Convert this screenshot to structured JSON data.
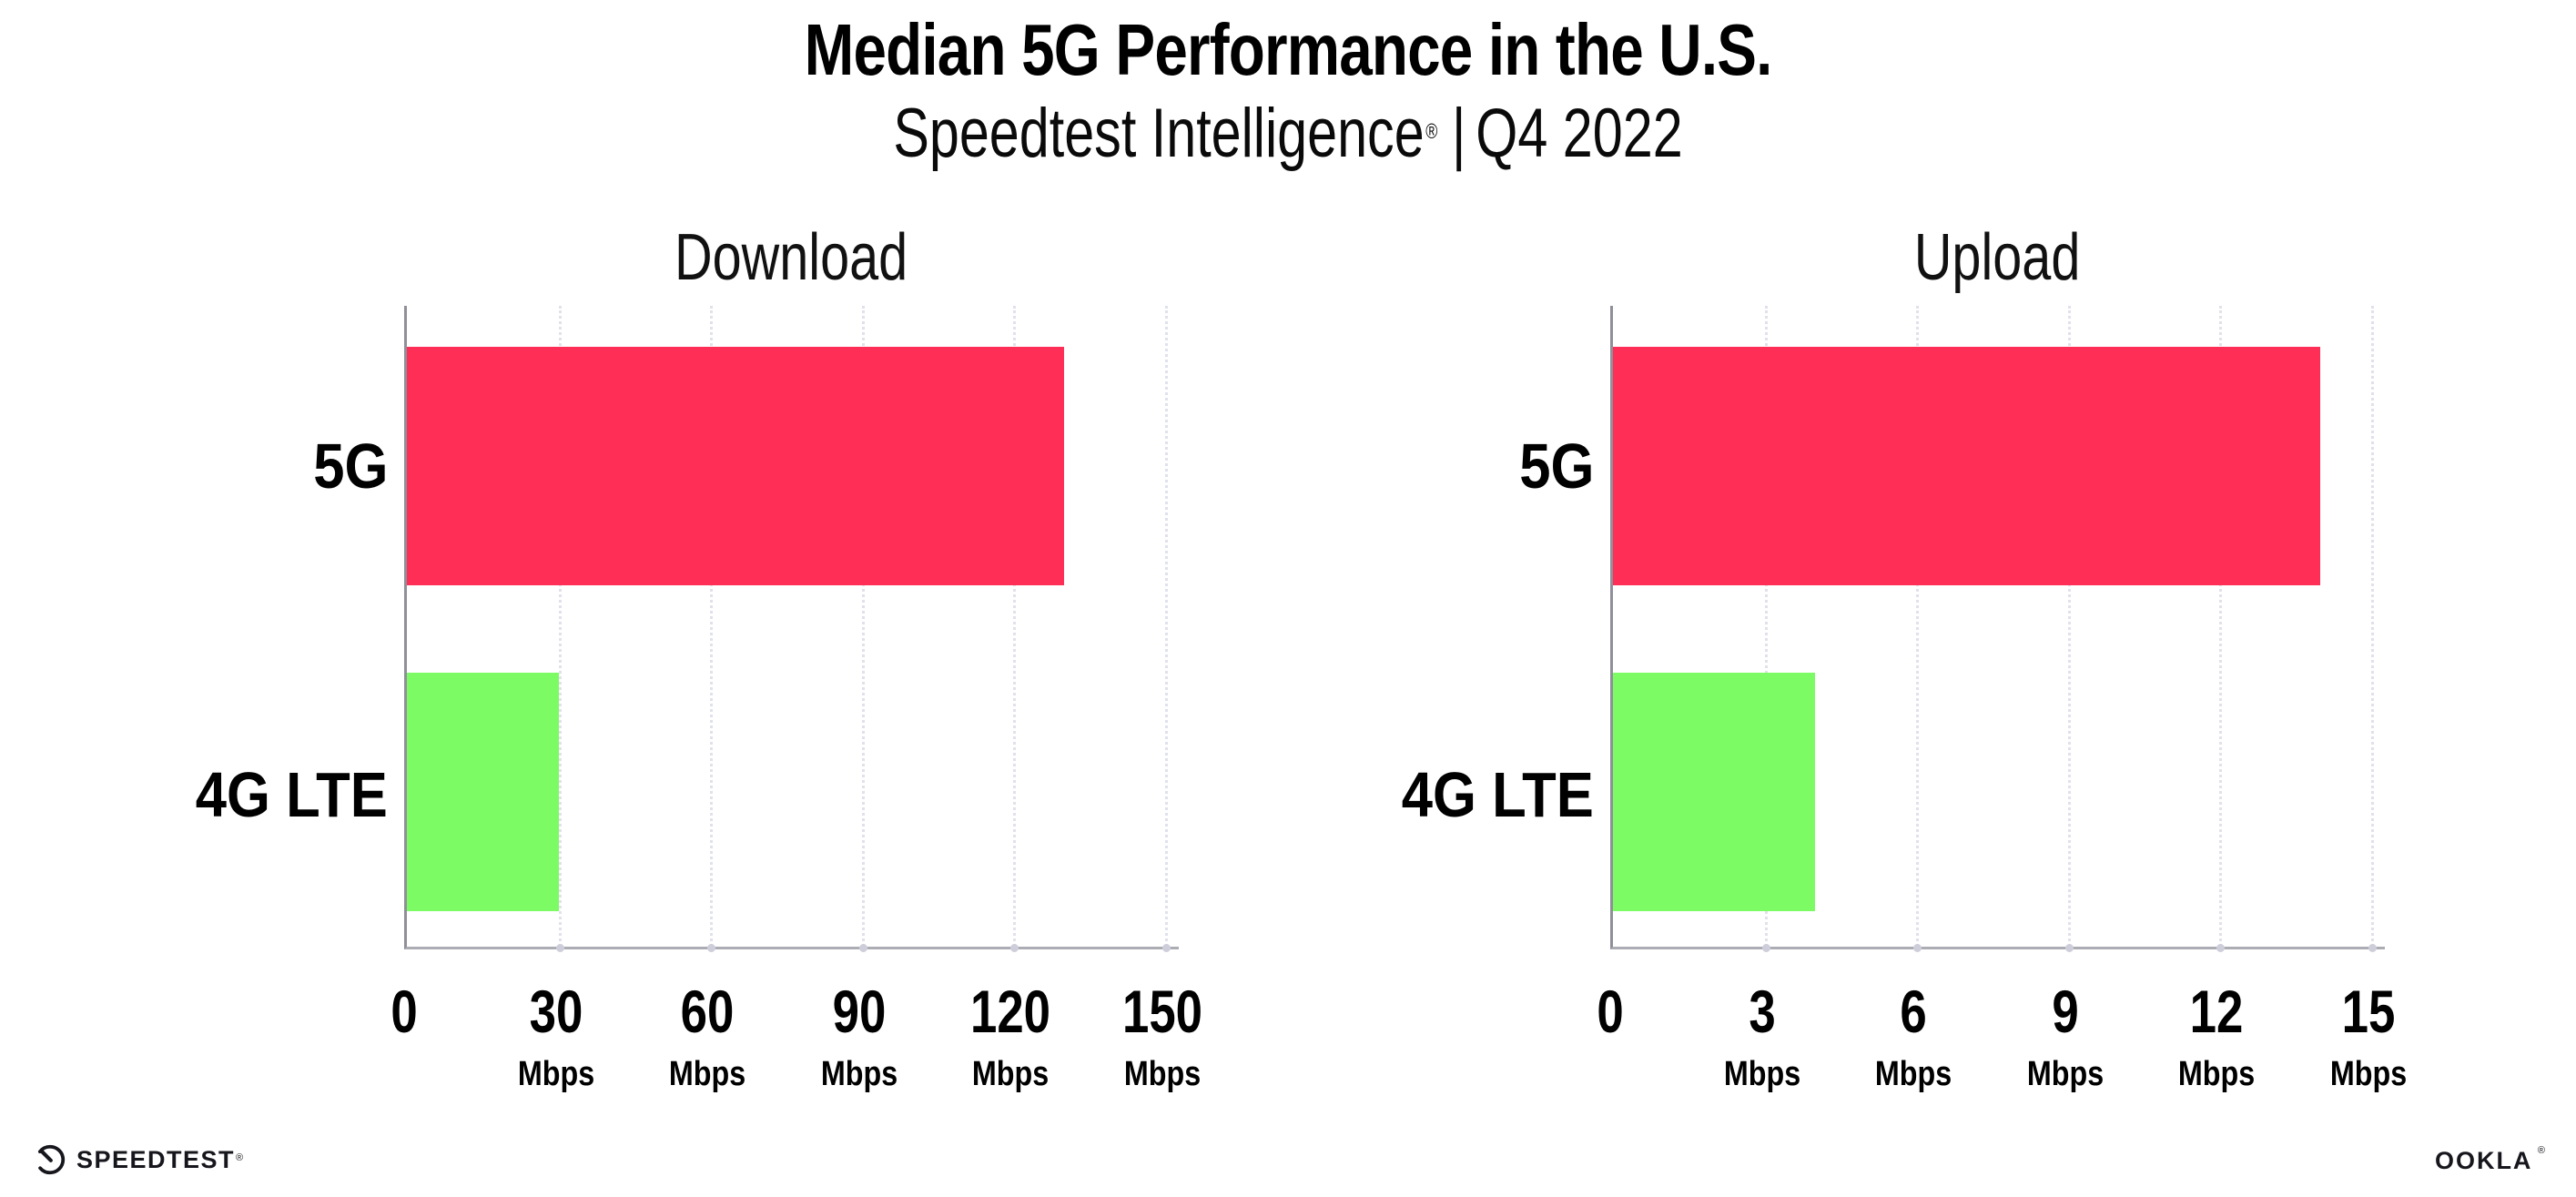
{
  "header": {
    "title": "Median 5G Performance in the U.S.",
    "subtitle_name": "Speedtest Intelligence",
    "subtitle_reg": "®",
    "subtitle_sep": "|",
    "subtitle_period": "Q4 2022"
  },
  "chart_data": [
    {
      "type": "bar",
      "orientation": "horizontal",
      "title": "Download",
      "categories": [
        "5G",
        "4G LTE"
      ],
      "values": [
        130,
        30
      ],
      "unit": "Mbps",
      "xlim": [
        0,
        150
      ],
      "xticks": [
        0,
        30,
        60,
        90,
        120,
        150
      ],
      "tick_unit": "Mbps",
      "colors": [
        "#FF2E56",
        "#7CFB64"
      ],
      "grid": "dotted-vertical",
      "legend": false
    },
    {
      "type": "bar",
      "orientation": "horizontal",
      "title": "Upload",
      "categories": [
        "5G",
        "4G LTE"
      ],
      "values": [
        14,
        4
      ],
      "unit": "Mbps",
      "xlim": [
        0,
        15
      ],
      "xticks": [
        0,
        3,
        6,
        9,
        12,
        15
      ],
      "tick_unit": "Mbps",
      "colors": [
        "#FF2E56",
        "#7CFB64"
      ],
      "grid": "dotted-vertical",
      "legend": false
    }
  ],
  "style_colors": {
    "bar_5g": "#FF2E56",
    "bar_4g_lte": "#7CFB64",
    "gridline": "#E0E1EB",
    "y_axis": "#8F8F9A",
    "x_axis": "#ACACB5",
    "text": "#000000"
  },
  "footer": {
    "speedtest_label": "SPEEDTEST",
    "speedtest_reg": "®",
    "ookla_label": "OOKLA",
    "ookla_reg": "®"
  }
}
